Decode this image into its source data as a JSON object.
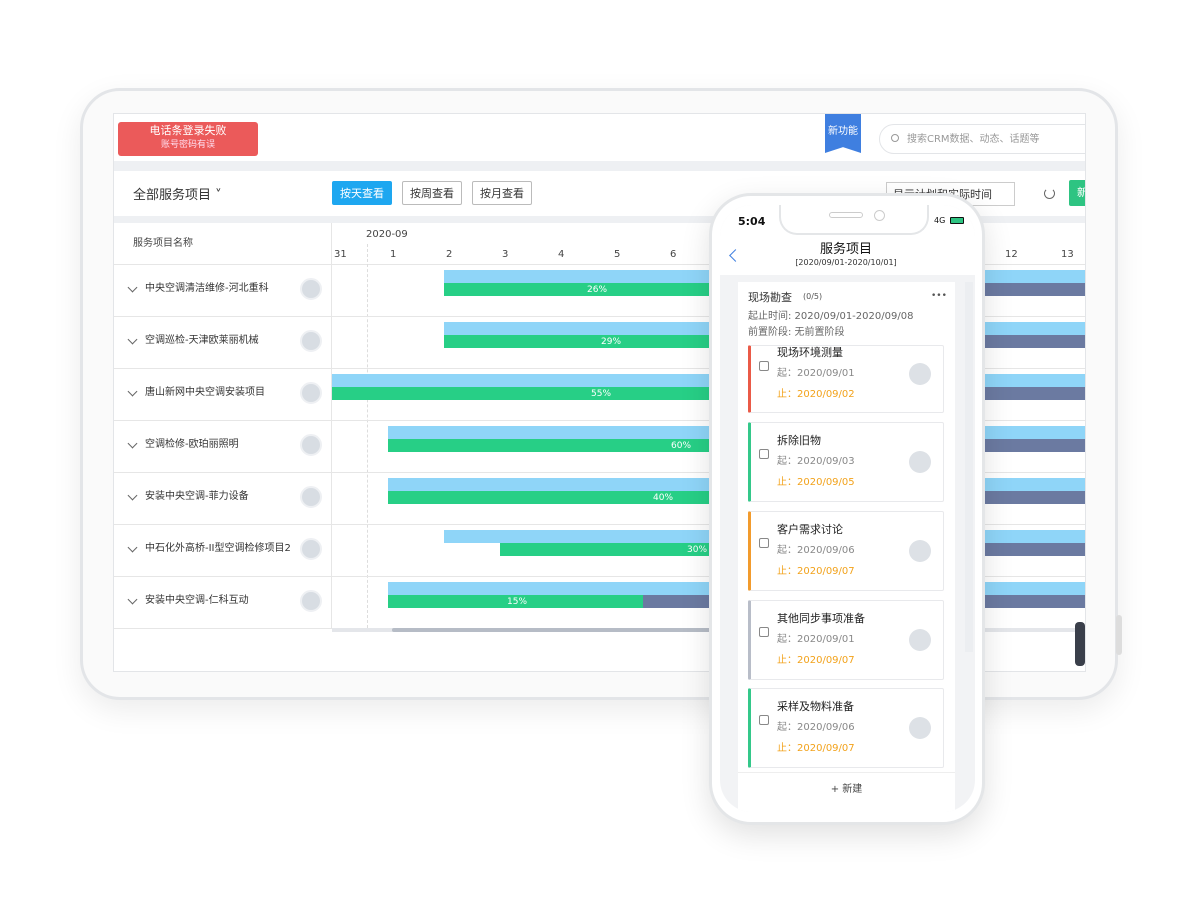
{
  "header": {
    "alert_title": "电话条登录失败",
    "alert_sub": "账号密码有误",
    "new_feature": "新功能",
    "search_placeholder": "搜索CRM数据、动态、话题等"
  },
  "toolbar": {
    "project_filter": "全部服务项目 ˅",
    "view_buttons": [
      "按天查看",
      "按周查看",
      "按月查看"
    ],
    "display_select": "显示计划和实际时间",
    "new_button": "新"
  },
  "gantt": {
    "name_column": "服务项目名称",
    "month": "2020-09",
    "days": [
      "31",
      "1",
      "2",
      "3",
      "4",
      "5",
      "6",
      "12",
      "13"
    ],
    "rows": [
      {
        "name": "中央空调清洁维修-河北重科",
        "progress": "26%"
      },
      {
        "name": "空调巡检-天津欧莱丽机械",
        "progress": "29%"
      },
      {
        "name": "唐山新网中央空调安装项目",
        "progress": "55%"
      },
      {
        "name": "空调检修-欧珀丽照明",
        "progress": "60%"
      },
      {
        "name": "安装中央空调-菲力设备",
        "progress": "40%"
      },
      {
        "name": "中石化外高桥-II型空调检修项目2",
        "progress": "30%"
      },
      {
        "name": "安装中央空调-仁科互动",
        "progress": "15%"
      }
    ]
  },
  "phone": {
    "time": "5:04",
    "network": "4G",
    "title": "服务项目",
    "range": "[2020/09/01-2020/10/01]",
    "stage": {
      "name": "现场勘查",
      "count": "(0/5)",
      "more": "•••",
      "period": "起止时间: 2020/09/01-2020/09/08",
      "prerequisite": "前置阶段: 无前置阶段"
    },
    "tasks": [
      {
        "title": "现场环境测量",
        "start": "起：2020/09/01",
        "end": "止：2020/09/02"
      },
      {
        "title": "拆除旧物",
        "start": "起：2020/09/03",
        "end": "止：2020/09/05"
      },
      {
        "title": "客户需求讨论",
        "start": "起：2020/09/06",
        "end": "止：2020/09/07"
      },
      {
        "title": "其他同步事项准备",
        "start": "起：2020/09/01",
        "end": "止：2020/09/07"
      },
      {
        "title": "采样及物料准备",
        "start": "起：2020/09/06",
        "end": "止：2020/09/07"
      }
    ],
    "new_task": "+ 新建"
  }
}
